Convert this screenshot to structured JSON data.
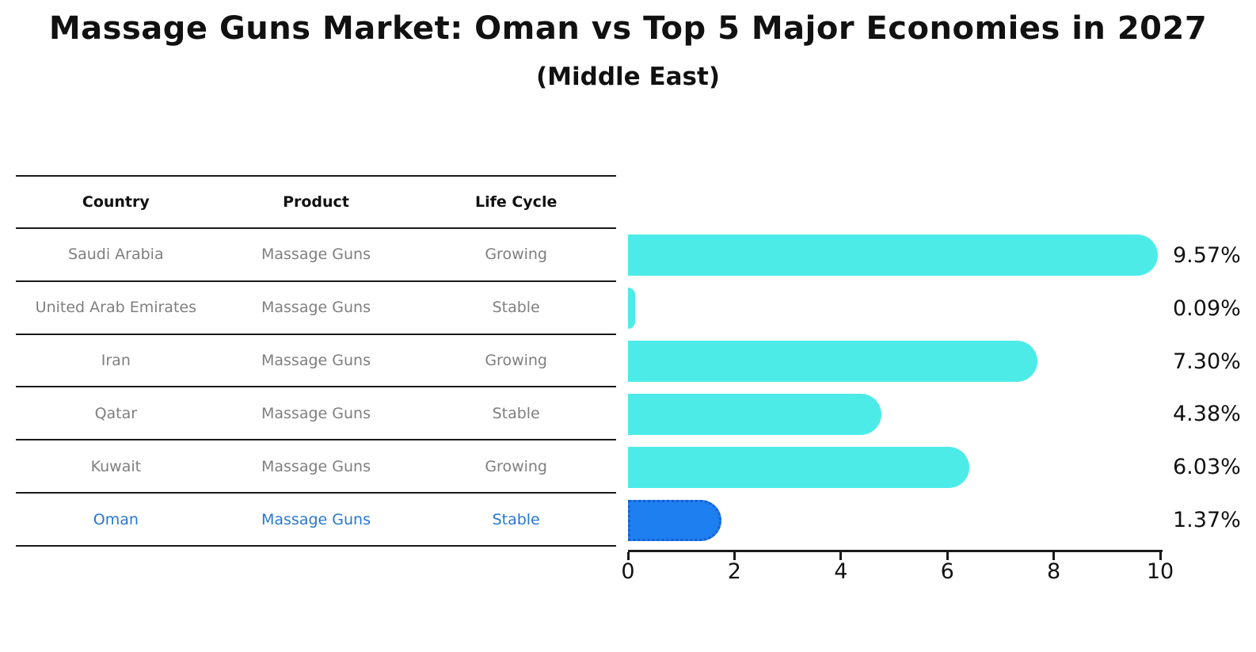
{
  "title": "Massage Guns Market: Oman vs Top 5 Major Economies in 2027",
  "subtitle": "(Middle East)",
  "table": {
    "headers": [
      "Country",
      "Product",
      "Life Cycle"
    ],
    "rows": [
      {
        "country": "Saudi Arabia",
        "product": "Massage Guns",
        "life_cycle": "Growing",
        "highlight": false
      },
      {
        "country": "United Arab Emirates",
        "product": "Massage Guns",
        "life_cycle": "Stable",
        "highlight": false
      },
      {
        "country": "Iran",
        "product": "Massage Guns",
        "life_cycle": "Growing",
        "highlight": false
      },
      {
        "country": "Qatar",
        "product": "Massage Guns",
        "life_cycle": "Stable",
        "highlight": false
      },
      {
        "country": "Kuwait",
        "product": "Massage Guns",
        "life_cycle": "Growing",
        "highlight": false
      },
      {
        "country": "Oman",
        "product": "Massage Guns",
        "life_cycle": "Stable",
        "highlight": true
      }
    ]
  },
  "chart_data": {
    "type": "bar",
    "orientation": "horizontal",
    "title": "Massage Guns Market: Oman vs Top 5 Major Economies in 2027",
    "subtitle": "(Middle East)",
    "categories": [
      "Saudi Arabia",
      "United Arab Emirates",
      "Iran",
      "Qatar",
      "Kuwait",
      "Oman"
    ],
    "values": [
      9.57,
      0.09,
      7.3,
      4.38,
      6.03,
      1.37
    ],
    "value_labels": [
      "9.57%",
      "0.09%",
      "7.30%",
      "4.38%",
      "6.03%",
      "1.37%"
    ],
    "xlabel": "",
    "ylabel": "",
    "xlim": [
      0,
      10
    ],
    "x_ticks": [
      "0",
      "2",
      "4",
      "6",
      "8",
      "10"
    ],
    "grid": false,
    "legend": false,
    "highlight_index": 5,
    "colors": {
      "bar_default": "#4debe8",
      "bar_highlight": "#1e7ff0",
      "bar_highlight_border": "#1a5fd0",
      "row_text": "#7f7f7f",
      "highlight_text": "#2878cf",
      "axis_text": "#111111"
    }
  }
}
